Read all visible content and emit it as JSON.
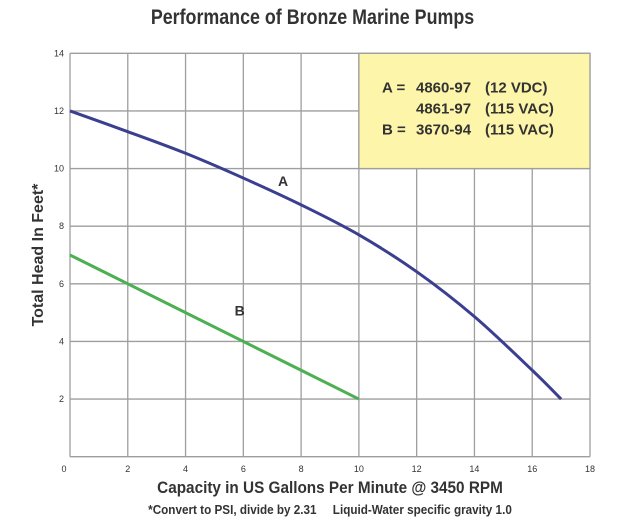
{
  "chart_data": {
    "type": "line",
    "title": "Performance of Bronze Marine Pumps",
    "xlabel": "Capacity in US Gallons Per Minute @ 3450 RPM",
    "ylabel": "Total Head In Feet*",
    "footnote": "*Convert to PSI, divide by 2.31     Liquid-Water specific gravity 1.0",
    "xlim": [
      0,
      18
    ],
    "ylim": [
      0,
      14
    ],
    "xticks": [
      0,
      2,
      4,
      6,
      8,
      10,
      12,
      14,
      16,
      18
    ],
    "yticks": [
      2,
      4,
      6,
      8,
      10,
      12,
      14
    ],
    "grid": true,
    "legend_placement": "top-right",
    "legend_lines": [
      {
        "key": "A =",
        "model": "4860-97",
        "spec": "(12 VDC)"
      },
      {
        "key": "",
        "model": "4861-97",
        "spec": "(115 VAC)"
      },
      {
        "key": "B =",
        "model": "3670-94",
        "spec": "(115 VAC)"
      }
    ],
    "legend_color": "#fdf5a9",
    "series": [
      {
        "name": "A",
        "color": "#3b3f8f",
        "label_at": [
          7.2,
          9.4
        ],
        "x": [
          0,
          2,
          4,
          6,
          8,
          10,
          12,
          14,
          16,
          17
        ],
        "y": [
          12,
          11.28,
          10.53,
          9.67,
          8.74,
          7.7,
          6.42,
          4.86,
          3.0,
          2.0
        ]
      },
      {
        "name": "B",
        "color": "#4caf50",
        "label_at": [
          5.7,
          4.9
        ],
        "x": [
          0,
          2,
          4,
          6,
          8,
          10
        ],
        "y": [
          7,
          6,
          5,
          4,
          3,
          2
        ]
      }
    ]
  }
}
